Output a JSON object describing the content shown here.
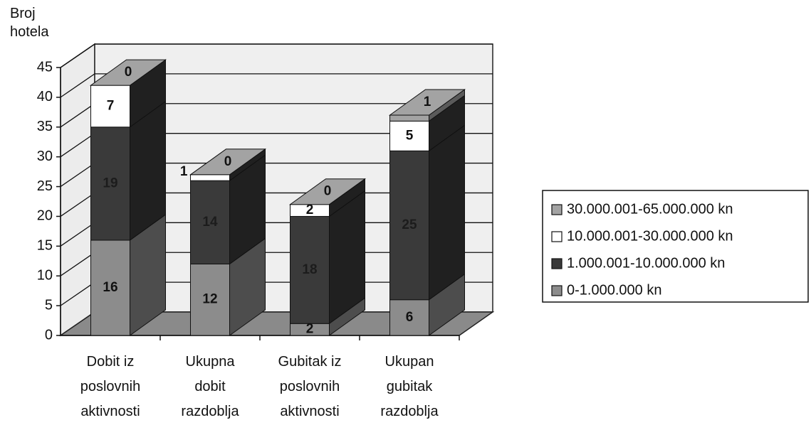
{
  "chart_data": {
    "type": "bar3d_stacked",
    "y_label": "Broj\nhotela",
    "categories": [
      "Dobit iz\nposlovnih\naktivnosti",
      "Ukupna\ndobit\nrazdoblja",
      "Gubitak iz\nposlovnih\naktivnosti",
      "Ukupan\ngubitak\nrazdoblja"
    ],
    "series": [
      {
        "name": "0-1.000.000 kn",
        "color": "#8c8c8c",
        "values": [
          16,
          12,
          2,
          6
        ]
      },
      {
        "name": "1.000.001-10.000.000 kn",
        "color": "#3a3a3a",
        "values": [
          19,
          14,
          18,
          25
        ]
      },
      {
        "name": "10.000.001-30.000.000 kn",
        "color": "#ffffff",
        "values": [
          7,
          1,
          2,
          5
        ]
      },
      {
        "name": "30.000.001-65.000.000 kn",
        "color": "#a3a3a3",
        "values": [
          0,
          0,
          0,
          1
        ]
      }
    ],
    "ylim": [
      0,
      45
    ],
    "yticks": [
      0,
      5,
      10,
      15,
      20,
      25,
      30,
      35,
      40,
      45
    ],
    "grid": true,
    "legend": "right"
  }
}
